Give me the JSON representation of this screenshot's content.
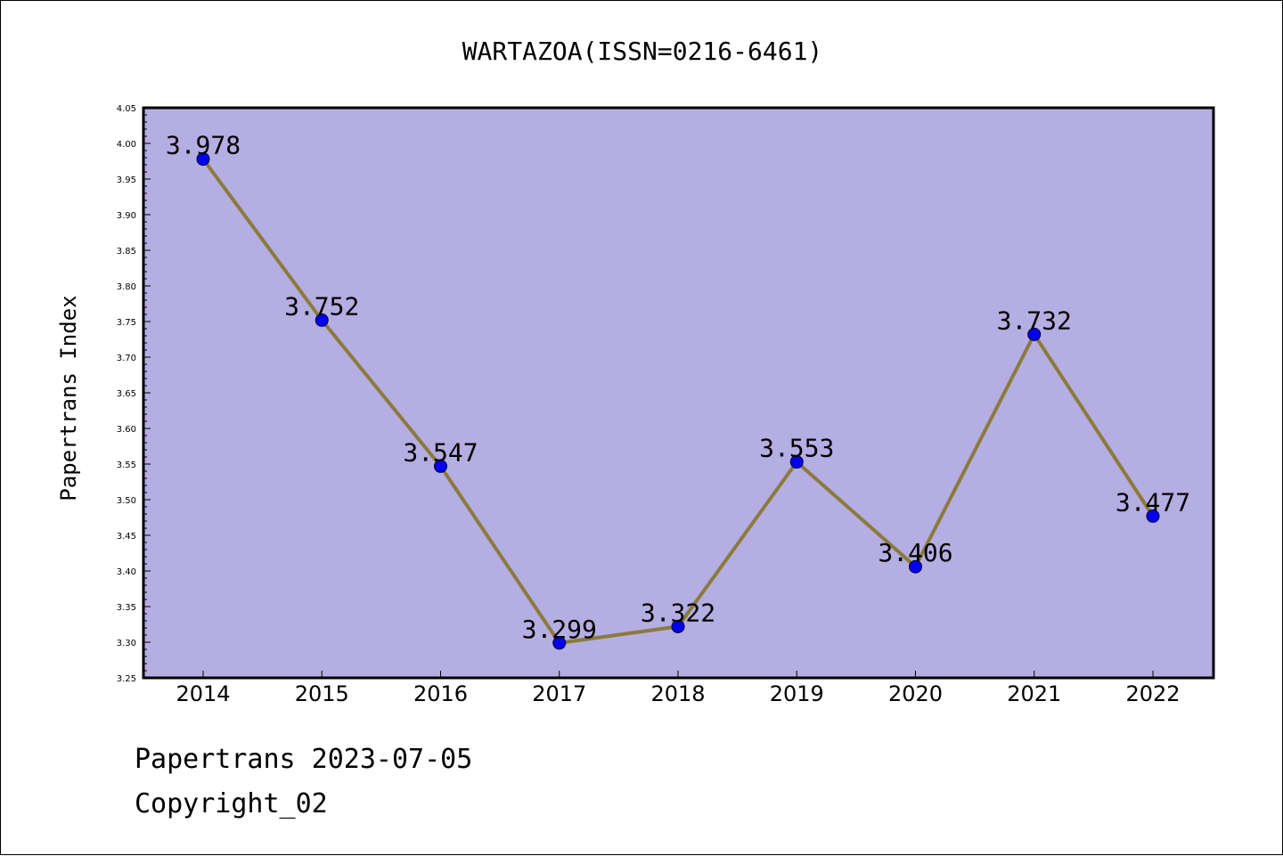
{
  "footer": {
    "date_line": "Papertrans 2023-07-05",
    "copyright": "Copyright_02"
  },
  "chart_data": {
    "type": "line",
    "title": "WARTAZOA(ISSN=0216-6461)",
    "xlabel": "",
    "ylabel": "Papertrans Index",
    "categories": [
      "2014",
      "2015",
      "2016",
      "2017",
      "2018",
      "2019",
      "2020",
      "2021",
      "2022"
    ],
    "values": [
      3.978,
      3.752,
      3.547,
      3.299,
      3.322,
      3.553,
      3.406,
      3.732,
      3.477
    ],
    "data_labels": [
      "3.978",
      "3.752",
      "3.547",
      "3.299",
      "3.322",
      "3.553",
      "3.406",
      "3.732",
      "3.477"
    ],
    "ylim": [
      3.25,
      4.05
    ],
    "yticks": [
      "3.25",
      "3.30",
      "3.35",
      "3.40",
      "3.45",
      "3.50",
      "3.55",
      "3.60",
      "3.65",
      "3.70",
      "3.75",
      "3.80",
      "3.85",
      "3.90",
      "3.95",
      "4.00",
      "4.05"
    ],
    "grid": false,
    "legend": "none",
    "colors": {
      "plot_background": "#b4aee2",
      "line": "#8b7a3c",
      "marker": "#0000ee",
      "axis": "#000000"
    }
  }
}
